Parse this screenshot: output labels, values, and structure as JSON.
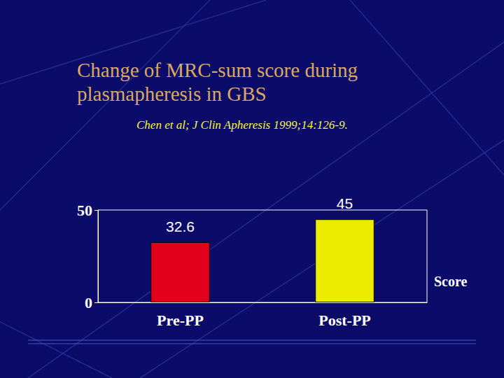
{
  "chart_data": {
    "type": "bar",
    "title": "Change of MRC-sum score during plasmapheresis in GBS",
    "subtitle": "Chen et al; J Clin Apheresis 1999;14:126-9.",
    "xlabel": "Score",
    "categories": [
      "Pre-PP",
      "Post-PP"
    ],
    "values": [
      32.6,
      45
    ],
    "colors": [
      "#e3001b",
      "#ecec00"
    ],
    "ylim": [
      0,
      50
    ],
    "yticks": [
      0,
      50
    ],
    "grid": false,
    "data_labels": true
  }
}
